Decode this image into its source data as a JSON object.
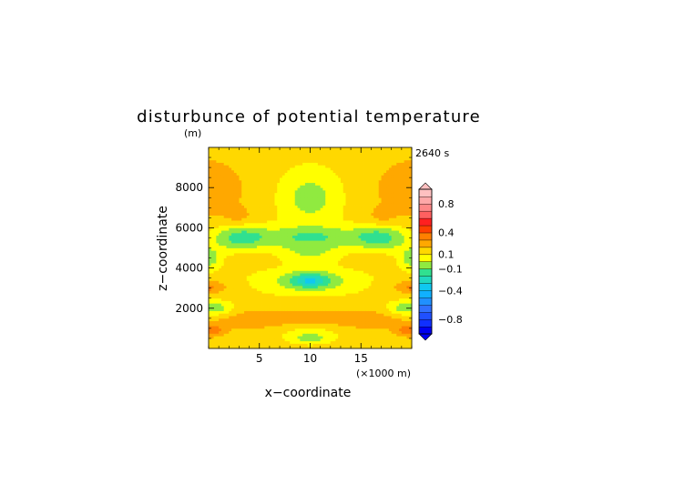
{
  "chart_data": {
    "type": "heatmap",
    "title": "disturbunce of potential temperature",
    "title_unit": "(m)",
    "time_label": "2640 s",
    "xlabel": "x−coordinate",
    "xunit": "(×1000 m)",
    "ylabel": "z−coordinate",
    "xlim": [
      0,
      20
    ],
    "ylim": [
      0,
      10000
    ],
    "x_ticks": [
      5,
      10,
      15
    ],
    "x_tick_labels": [
      "5",
      "10",
      "15"
    ],
    "y_ticks": [
      2000,
      4000,
      6000,
      8000
    ],
    "y_tick_labels": [
      "2000",
      "4000",
      "6000",
      "8000"
    ],
    "colorbar": {
      "levels": [
        -1.0,
        -0.9,
        -0.8,
        -0.7,
        -0.6,
        -0.5,
        -0.4,
        -0.3,
        -0.2,
        -0.1,
        0,
        0.1,
        0.2,
        0.3,
        0.4,
        0.5,
        0.6,
        0.7,
        0.8,
        0.9,
        1.0
      ],
      "colors": [
        "#0000f0",
        "#1030ff",
        "#2050ff",
        "#3070ff",
        "#2090ff",
        "#10b0ff",
        "#10c8f0",
        "#20d8c0",
        "#30e090",
        "#90ea40",
        "#ffff00",
        "#ffd800",
        "#ffa800",
        "#ff8000",
        "#ff4000",
        "#ff2020",
        "#ff6060",
        "#ff8888",
        "#ffa8a8",
        "#ffc0c0"
      ],
      "labels": [
        {
          "value": 0.8,
          "text": "0.8"
        },
        {
          "value": 0.4,
          "text": "0.4"
        },
        {
          "value": 0.1,
          "text": "0.1"
        },
        {
          "value": -0.1,
          "text": "−0.1"
        },
        {
          "value": -0.4,
          "text": "−0.4"
        },
        {
          "value": -0.8,
          "text": "−0.8"
        }
      ],
      "extend": "both",
      "position": "right"
    },
    "grid": false
  }
}
